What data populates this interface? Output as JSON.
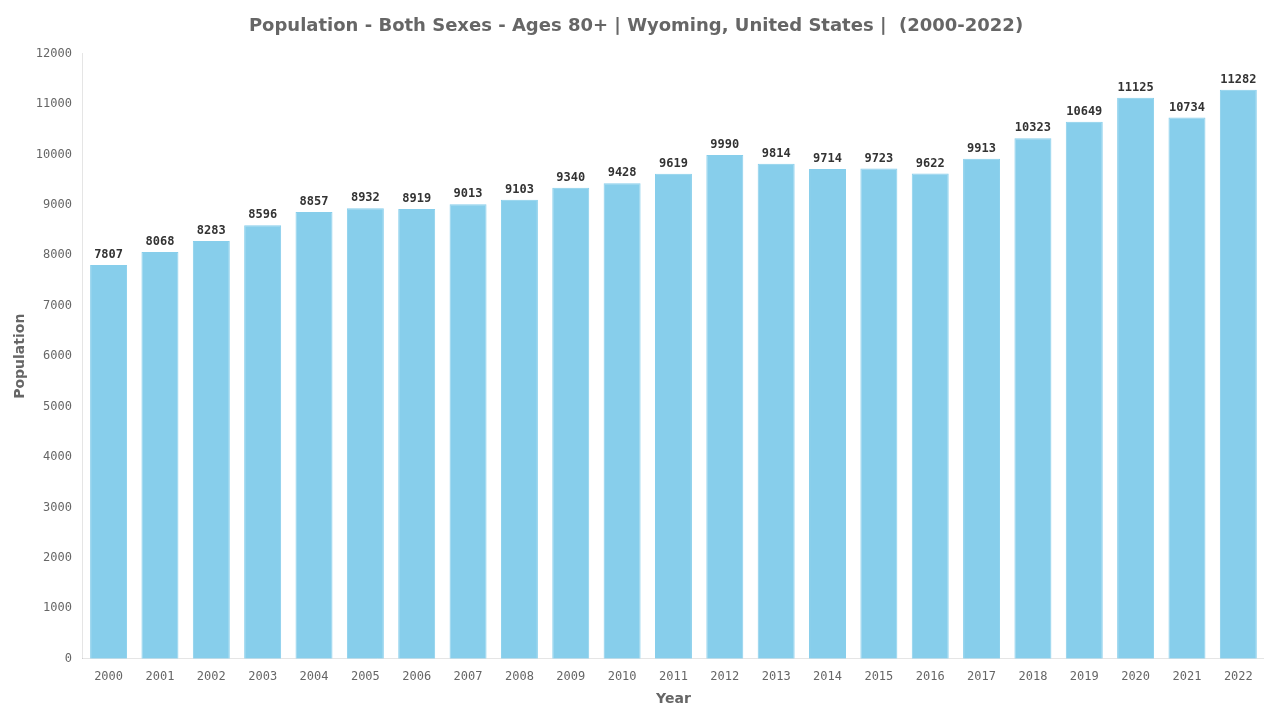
{
  "chart_data": {
    "type": "bar",
    "title": "Population - Both Sexes - Ages 80+ | Wyoming, United States |  (2000-2022)",
    "x_label": "Year",
    "y_label": "Population",
    "categories": [
      "2000",
      "2001",
      "2002",
      "2003",
      "2004",
      "2005",
      "2006",
      "2007",
      "2008",
      "2009",
      "2010",
      "2011",
      "2012",
      "2013",
      "2014",
      "2015",
      "2016",
      "2017",
      "2018",
      "2019",
      "2020",
      "2021",
      "2022"
    ],
    "values": [
      7807,
      8068,
      8283,
      8596,
      8857,
      8932,
      8919,
      9013,
      9103,
      9340,
      9428,
      9619,
      9990,
      9814,
      9714,
      9723,
      9622,
      9913,
      10323,
      10649,
      11125,
      10734,
      11282
    ],
    "color": "#87CEEB",
    "ylim": [
      0,
      12000
    ],
    "yticks": [
      0,
      1000,
      2000,
      3000,
      4000,
      5000,
      6000,
      7000,
      8000,
      9000,
      10000,
      11000,
      12000
    ],
    "grid": false,
    "data_labels": true
  }
}
